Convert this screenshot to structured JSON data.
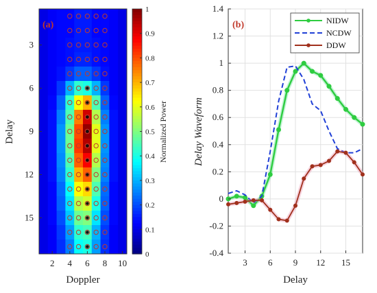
{
  "chart_data": [
    {
      "id": "a",
      "type": "heatmap",
      "panel_label": "(a)",
      "xlabel": "Doppler",
      "ylabel": "Delay",
      "x_ticks": [
        2,
        4,
        6,
        8,
        10
      ],
      "y_ticks": [
        3,
        6,
        9,
        12,
        15
      ],
      "x_range": [
        1,
        10
      ],
      "y_range": [
        1,
        17
      ],
      "colorbar": {
        "label": "Normalized Power",
        "ticks": [
          0,
          0.1,
          0.2,
          0.3,
          0.4,
          0.5,
          0.6,
          0.7,
          0.8,
          0.9,
          1
        ],
        "tick_labels": [
          "0",
          "0.1",
          "0.2",
          "0.3",
          "0.4",
          "0.5",
          "0.6",
          "0.7",
          "0.8",
          "0.9",
          "1"
        ],
        "range": [
          0,
          1
        ]
      },
      "grid": [
        [
          0.1,
          0.12,
          0.13,
          0.13,
          0.15,
          0.15,
          0.13,
          0.13,
          0.12,
          0.1
        ],
        [
          0.1,
          0.12,
          0.13,
          0.13,
          0.15,
          0.15,
          0.13,
          0.13,
          0.12,
          0.1
        ],
        [
          0.1,
          0.12,
          0.13,
          0.14,
          0.15,
          0.15,
          0.14,
          0.13,
          0.12,
          0.1
        ],
        [
          0.1,
          0.12,
          0.13,
          0.14,
          0.16,
          0.16,
          0.14,
          0.13,
          0.12,
          0.1
        ],
        [
          0.1,
          0.12,
          0.14,
          0.18,
          0.22,
          0.22,
          0.18,
          0.14,
          0.12,
          0.1
        ],
        [
          0.1,
          0.12,
          0.18,
          0.3,
          0.42,
          0.4,
          0.3,
          0.18,
          0.12,
          0.1
        ],
        [
          0.1,
          0.13,
          0.22,
          0.42,
          0.62,
          0.7,
          0.45,
          0.22,
          0.13,
          0.1
        ],
        [
          0.1,
          0.14,
          0.25,
          0.45,
          0.75,
          0.92,
          0.55,
          0.25,
          0.14,
          0.1
        ],
        [
          0.1,
          0.14,
          0.27,
          0.48,
          0.8,
          0.98,
          0.6,
          0.27,
          0.14,
          0.1
        ],
        [
          0.1,
          0.14,
          0.27,
          0.48,
          0.82,
          0.95,
          0.6,
          0.27,
          0.14,
          0.1
        ],
        [
          0.1,
          0.14,
          0.26,
          0.45,
          0.78,
          0.88,
          0.55,
          0.26,
          0.14,
          0.1
        ],
        [
          0.1,
          0.14,
          0.25,
          0.42,
          0.7,
          0.78,
          0.5,
          0.25,
          0.14,
          0.1
        ],
        [
          0.1,
          0.13,
          0.23,
          0.38,
          0.62,
          0.66,
          0.45,
          0.23,
          0.13,
          0.1
        ],
        [
          0.1,
          0.13,
          0.22,
          0.35,
          0.55,
          0.58,
          0.4,
          0.22,
          0.13,
          0.1
        ],
        [
          0.1,
          0.13,
          0.2,
          0.32,
          0.48,
          0.5,
          0.35,
          0.2,
          0.13,
          0.1
        ],
        [
          0.1,
          0.12,
          0.18,
          0.28,
          0.42,
          0.44,
          0.3,
          0.18,
          0.12,
          0.1
        ],
        [
          0.1,
          0.12,
          0.17,
          0.25,
          0.38,
          0.4,
          0.28,
          0.17,
          0.12,
          0.1
        ]
      ],
      "marker_columns": [
        4,
        5,
        6,
        7,
        8
      ],
      "marker_rows": [
        1,
        17
      ],
      "center_column": 6,
      "center_dot_rows": [
        6,
        17
      ]
    },
    {
      "id": "b",
      "type": "line",
      "panel_label": "(b)",
      "xlabel": "Delay",
      "ylabel": "Delay Waveform",
      "xlim": [
        1,
        17
      ],
      "ylim": [
        -0.4,
        1.4
      ],
      "x_ticks": [
        3,
        6,
        9,
        12,
        15
      ],
      "y_ticks": [
        -0.4,
        -0.2,
        0,
        0.2,
        0.4,
        0.6,
        0.8,
        1,
        1.2,
        1.4
      ],
      "y_tick_labels": [
        "-0.4",
        "-0.2",
        "0",
        "0.2",
        "0.4",
        "0.6",
        "0.8",
        "1",
        "1.2",
        "1.4"
      ],
      "grid": true,
      "legend_position": "top-right",
      "series": [
        {
          "name": "NIDW",
          "color": "#2ecc40",
          "style": "solid-markers",
          "x": [
            1,
            2,
            3,
            4,
            5,
            6,
            7,
            8,
            9,
            10,
            11,
            12,
            13,
            14,
            15,
            16,
            17
          ],
          "y": [
            0.0,
            0.02,
            0.01,
            -0.05,
            0.02,
            0.18,
            0.51,
            0.8,
            0.94,
            1.0,
            0.94,
            0.91,
            0.83,
            0.74,
            0.66,
            0.6,
            0.55
          ]
        },
        {
          "name": "NCDW",
          "color": "#1f3fd6",
          "style": "dashed",
          "x": [
            1,
            2,
            3,
            4,
            5,
            6,
            7,
            8,
            9,
            10,
            11,
            12,
            13,
            14,
            15,
            16,
            17
          ],
          "y": [
            0.04,
            0.06,
            0.03,
            -0.03,
            0.02,
            0.35,
            0.72,
            0.97,
            0.98,
            0.88,
            0.7,
            0.65,
            0.5,
            0.37,
            0.34,
            0.34,
            0.37
          ]
        },
        {
          "name": "DDW",
          "color": "#a0301c",
          "style": "solid-markers",
          "x": [
            1,
            2,
            3,
            4,
            5,
            6,
            7,
            8,
            9,
            10,
            11,
            12,
            13,
            14,
            15,
            16,
            17
          ],
          "y": [
            -0.04,
            -0.03,
            -0.02,
            -0.01,
            -0.01,
            -0.08,
            -0.15,
            -0.16,
            -0.05,
            0.15,
            0.24,
            0.25,
            0.28,
            0.35,
            0.34,
            0.27,
            0.18
          ]
        }
      ]
    }
  ]
}
